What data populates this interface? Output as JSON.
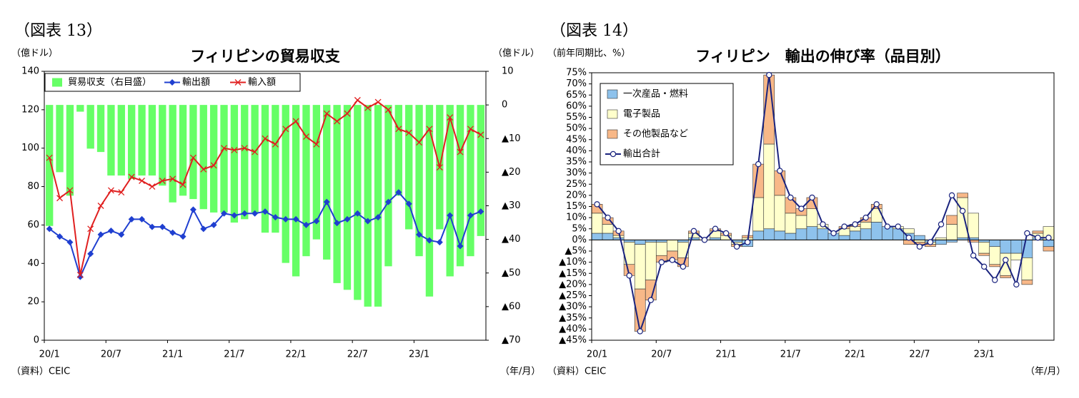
{
  "chart_data": [
    {
      "type": "bar_line",
      "figure": "（図表 13）",
      "title": "フィリピンの貿易収支",
      "y_label": "（億ドル）",
      "y2_label": "（億ドル）",
      "source": "（資料）CEIC",
      "x_label": "（年/月）",
      "categories": [
        "20/1",
        null,
        null,
        null,
        null,
        null,
        "20/7",
        null,
        null,
        null,
        null,
        null,
        "21/1",
        null,
        null,
        null,
        null,
        null,
        "21/7",
        null,
        null,
        null,
        null,
        null,
        "22/1",
        null,
        null,
        null,
        null,
        null,
        "22/7",
        null,
        null,
        null,
        null,
        null,
        "23/1",
        null,
        null,
        null,
        null,
        null,
        null
      ],
      "ylim": [
        0,
        140
      ],
      "yticks": [
        0,
        20,
        40,
        60,
        80,
        100,
        120,
        140
      ],
      "y2lim": [
        -70,
        10
      ],
      "y2ticks": [
        10,
        0,
        {
          "value": -10,
          "label": "▲10"
        },
        {
          "value": -20,
          "label": "▲20"
        },
        {
          "value": -30,
          "label": "▲30"
        },
        {
          "value": -40,
          "label": "▲40"
        },
        {
          "value": -50,
          "label": "▲50"
        },
        {
          "value": -60,
          "label": "▲60"
        },
        {
          "value": -70,
          "label": "▲70"
        }
      ],
      "legend": "top-left",
      "series": [
        {
          "name": "貿易収支（右目盛）",
          "type": "bar",
          "axis": "y2",
          "color": "#66ff66",
          "values": [
            -36,
            -20,
            -27,
            -2,
            -13,
            -14,
            -21,
            -21,
            -22,
            -21,
            -21,
            -24,
            -29,
            -27,
            -28,
            -31,
            -32,
            -32,
            -35,
            -34,
            -32,
            -38,
            -38,
            -47,
            -51,
            -45,
            -40,
            -46,
            -53,
            -55,
            -58,
            -60,
            -60,
            -48,
            -27,
            -37,
            -45,
            -57,
            -37,
            -51,
            -48,
            -45,
            -39
          ]
        },
        {
          "name": "輸出額",
          "type": "line",
          "marker": "diamond",
          "color": "#1f3fd0",
          "values": [
            58,
            54,
            51,
            33,
            45,
            55,
            57,
            55,
            63,
            63,
            59,
            59,
            56,
            54,
            68,
            58,
            60,
            66,
            65,
            66,
            66,
            67,
            64,
            63,
            63,
            60,
            62,
            72,
            61,
            63,
            66,
            62,
            64,
            72,
            77,
            71,
            55,
            52,
            51,
            65,
            49,
            65,
            67
          ]
        },
        {
          "name": "輸入額",
          "type": "line",
          "marker": "x",
          "color": "#e02020",
          "values": [
            95,
            74,
            78,
            34,
            58,
            70,
            78,
            77,
            85,
            83,
            80,
            83,
            84,
            81,
            95,
            89,
            91,
            100,
            99,
            100,
            98,
            105,
            102,
            110,
            114,
            106,
            102,
            118,
            114,
            118,
            125,
            121,
            124,
            120,
            110,
            108,
            103,
            110,
            90,
            116,
            98,
            110,
            107
          ]
        }
      ]
    },
    {
      "type": "stacked_bar_line",
      "figure": "（図表 14）",
      "title": "フィリピン　輸出の伸び率（品目別）",
      "y_label": "（前年同期比、%）",
      "source": "（資料）CEIC",
      "x_label": "（年/月）",
      "categories": [
        "20/1",
        null,
        null,
        null,
        null,
        null,
        "20/7",
        null,
        null,
        null,
        null,
        null,
        "21/1",
        null,
        null,
        null,
        null,
        null,
        "21/7",
        null,
        null,
        null,
        null,
        null,
        "22/1",
        null,
        null,
        null,
        null,
        null,
        "22/7",
        null,
        null,
        null,
        null,
        null,
        "23/1",
        null,
        null,
        null,
        null,
        null,
        null
      ],
      "ylim": [
        -45,
        75
      ],
      "yticks": [
        {
          "value": -45,
          "label": "▲45%"
        },
        {
          "value": -40,
          "label": "▲40%"
        },
        {
          "value": -35,
          "label": "▲35%"
        },
        {
          "value": -30,
          "label": "▲30%"
        },
        {
          "value": -25,
          "label": "▲25%"
        },
        {
          "value": -20,
          "label": "▲20%"
        },
        {
          "value": -15,
          "label": "▲15%"
        },
        {
          "value": -10,
          "label": "▲10%"
        },
        {
          "value": -5,
          "label": "▲5%"
        },
        {
          "value": 0,
          "label": "0%"
        },
        {
          "value": 5,
          "label": "5%"
        },
        {
          "value": 10,
          "label": "10%"
        },
        {
          "value": 15,
          "label": "15%"
        },
        {
          "value": 20,
          "label": "20%"
        },
        {
          "value": 25,
          "label": "25%"
        },
        {
          "value": 30,
          "label": "30%"
        },
        {
          "value": 35,
          "label": "35%"
        },
        {
          "value": 40,
          "label": "40%"
        },
        {
          "value": 45,
          "label": "45%"
        },
        {
          "value": 50,
          "label": "50%"
        },
        {
          "value": 55,
          "label": "55%"
        },
        {
          "value": 60,
          "label": "60%"
        },
        {
          "value": 65,
          "label": "65%"
        },
        {
          "value": 70,
          "label": "70%"
        },
        {
          "value": 75,
          "label": "75%"
        }
      ],
      "legend": "top-left",
      "series": [
        {
          "name": "一次産品・燃料",
          "type": "bar",
          "color": "#8ec2ec",
          "values": [
            3,
            3,
            1,
            -1,
            -2,
            -1,
            -1,
            0,
            -1,
            1,
            0,
            1,
            0,
            -1,
            -3,
            4,
            5,
            4,
            3,
            5,
            6,
            5,
            3,
            2,
            4,
            5,
            8,
            6,
            5,
            3,
            2,
            -1,
            -2,
            -1,
            1,
            1,
            -1,
            -3,
            -6,
            -6,
            -8,
            1,
            -3
          ]
        },
        {
          "name": "電子製品",
          "type": "bar",
          "color": "#ffffcc",
          "values": [
            9,
            4,
            1,
            -10,
            -20,
            -17,
            -6,
            -5,
            -7,
            2,
            0,
            3,
            2,
            -1,
            1,
            15,
            38,
            16,
            9,
            6,
            8,
            2,
            0,
            3,
            2,
            3,
            6,
            0,
            1,
            2,
            -1,
            -1,
            1,
            7,
            18,
            11,
            -5,
            -8,
            -10,
            -3,
            -10,
            2,
            6
          ]
        },
        {
          "name": "その他製品など",
          "type": "bar",
          "color": "#f8b888",
          "values": [
            4,
            3,
            2,
            -5,
            -19,
            -9,
            -3,
            -4,
            -4,
            1,
            0,
            1,
            1,
            -1,
            1,
            15,
            31,
            11,
            7,
            3,
            5,
            0,
            0,
            1,
            1,
            2,
            2,
            0,
            0,
            -2,
            -1,
            -1,
            0,
            4,
            2,
            -1,
            -1,
            -1,
            -1,
            0,
            -2,
            1,
            -2
          ]
        },
        {
          "name": "輸出合計",
          "type": "line",
          "marker": "circle",
          "color": "#1a237e",
          "values": [
            16,
            10,
            4,
            -16,
            -41,
            -27,
            -10,
            -9,
            -12,
            4,
            0,
            5,
            3,
            -3,
            -1,
            34,
            74,
            31,
            19,
            14,
            19,
            7,
            3,
            6,
            7,
            10,
            16,
            6,
            6,
            1,
            -3,
            -1,
            7,
            20,
            13,
            -7,
            -12,
            -18,
            -9,
            -20,
            3,
            1,
            1
          ]
        }
      ]
    }
  ]
}
